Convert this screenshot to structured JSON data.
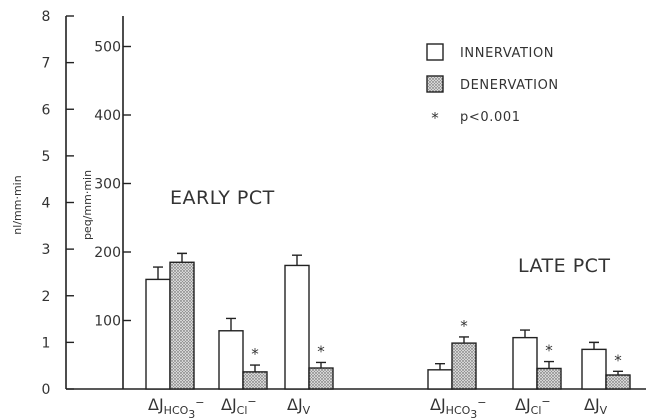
{
  "chart_data": {
    "type": "bar",
    "left_axis": {
      "label": "nl/mm·min",
      "ticks": [
        "0",
        "1",
        "2",
        "3",
        "4",
        "5",
        "6",
        "7",
        "8"
      ],
      "range": [
        0,
        8
      ]
    },
    "right_axis": {
      "label": "peq/mm·min",
      "ticks": [
        "100",
        "200",
        "300",
        "400",
        "500"
      ],
      "range": [
        0,
        525
      ]
    },
    "legend": {
      "items": [
        {
          "label": "INNERVATION",
          "style": "open"
        },
        {
          "label": "DENERVATION",
          "style": "stippled"
        }
      ],
      "significance": {
        "symbol": "*",
        "label": "p<0.001"
      },
      "placement": "top-right"
    },
    "colors": {
      "innervation": "#ffffff",
      "denervation": "#bdbdbd",
      "ink": "#222222"
    },
    "groups": [
      {
        "name": "EARLY PCT",
        "categories": [
          {
            "main": "ΔJ",
            "sub": "HCO",
            "sub2": "3",
            "supsign": "−",
            "axis": "right",
            "innervation": 160,
            "innervation_err": 18,
            "denervation": 185,
            "denervation_err": 13,
            "significant": false
          },
          {
            "main": "ΔJ",
            "sub": "Cl",
            "supsign": "−",
            "axis": "right",
            "innervation": 85,
            "innervation_err": 18,
            "denervation": 25,
            "denervation_err": 10,
            "significant": true
          },
          {
            "main": "ΔJ",
            "sub": "V",
            "axis": "left",
            "innervation": 2.65,
            "innervation_err": 0.22,
            "denervation": 0.45,
            "denervation_err": 0.12,
            "significant": true
          }
        ]
      },
      {
        "name": "LATE PCT",
        "categories": [
          {
            "main": "ΔJ",
            "sub": "HCO",
            "sub2": "3",
            "supsign": "−",
            "axis": "right",
            "innervation": 28,
            "innervation_err": 9,
            "denervation": 67,
            "denervation_err": 9,
            "significant": true
          },
          {
            "main": "ΔJ",
            "sub": "Cl",
            "supsign": "−",
            "axis": "right",
            "innervation": 75,
            "innervation_err": 11,
            "denervation": 30,
            "denervation_err": 10,
            "significant": true
          },
          {
            "main": "ΔJ",
            "sub": "V",
            "axis": "left",
            "innervation": 0.85,
            "innervation_err": 0.15,
            "denervation": 0.3,
            "denervation_err": 0.08,
            "significant": true
          }
        ]
      }
    ]
  }
}
